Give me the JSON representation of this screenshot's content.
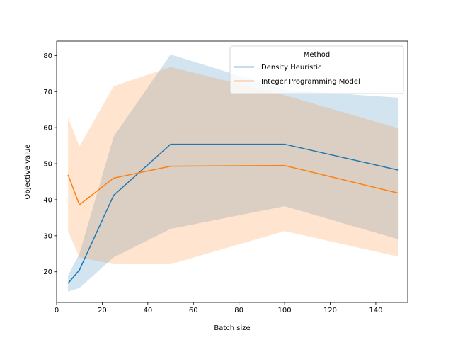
{
  "chart_data": {
    "type": "line",
    "xlabel": "Batch size",
    "ylabel": "Objective value",
    "xlim": [
      0,
      154
    ],
    "ylim": [
      11.5,
      84
    ],
    "xticks": [
      0,
      20,
      40,
      60,
      80,
      100,
      120,
      140
    ],
    "yticks": [
      20,
      30,
      40,
      50,
      60,
      70,
      80
    ],
    "grid": false,
    "legend": {
      "title": "Method",
      "placement": "top-right"
    },
    "x": [
      5,
      10,
      25,
      50,
      100,
      150
    ],
    "series": [
      {
        "name": "Density Heuristic",
        "color": "#1f77b4",
        "values": [
          16.8,
          20.5,
          41.2,
          55.4,
          55.4,
          48.2
        ],
        "ci_lower": [
          14.5,
          15.5,
          24.0,
          31.9,
          38.2,
          29.0
        ],
        "ci_upper": [
          19.0,
          25.0,
          57.5,
          80.3,
          70.5,
          68.3
        ]
      },
      {
        "name": "Integer Programming Model",
        "color": "#ff7f0e",
        "values": [
          46.9,
          38.6,
          46.0,
          49.3,
          49.5,
          41.8
        ],
        "ci_lower": [
          31.3,
          24.0,
          22.1,
          22.1,
          31.3,
          24.2
        ],
        "ci_upper": [
          62.9,
          54.8,
          71.5,
          76.8,
          69.0,
          59.8
        ]
      }
    ]
  }
}
